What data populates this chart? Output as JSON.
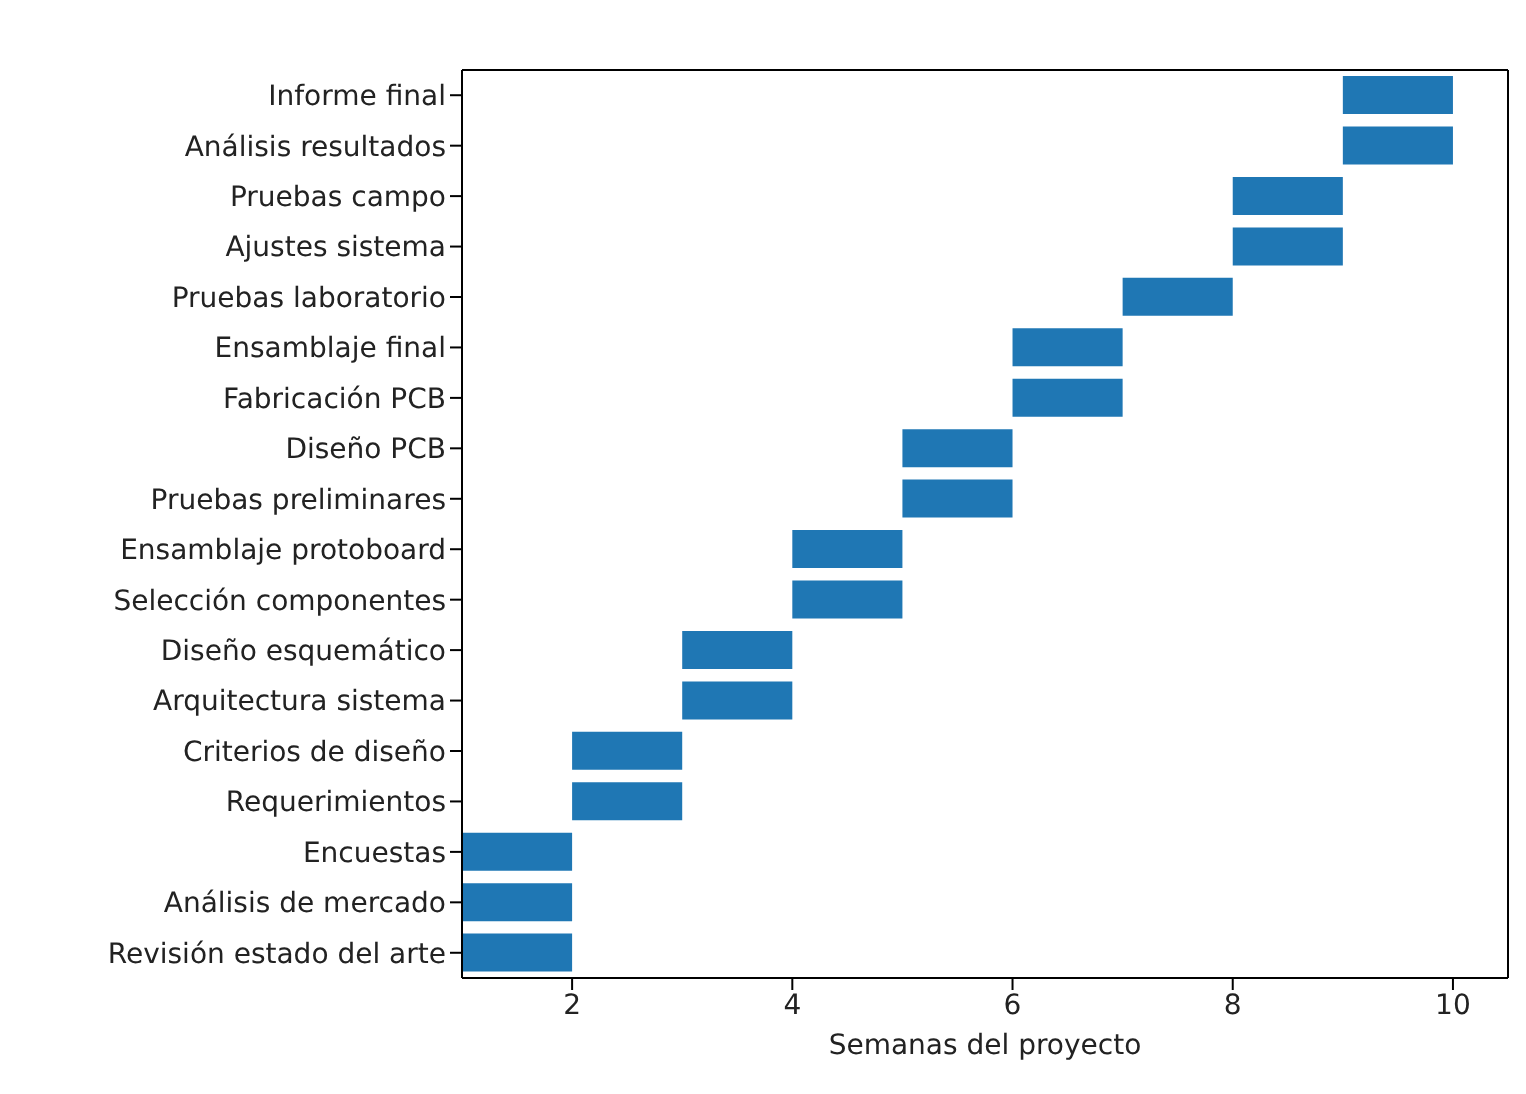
{
  "chart_data": {
    "type": "bar",
    "orientation": "horizontal",
    "xlabel": "Semanas del proyecto",
    "categories": [
      "Informe final",
      "Análisis resultados",
      "Pruebas campo",
      "Ajustes sistema",
      "Pruebas laboratorio",
      "Ensamblaje final",
      "Fabricación PCB",
      "Diseño PCB",
      "Pruebas preliminares",
      "Ensamblaje protoboard",
      "Selección componentes",
      "Diseño esquemático",
      "Arquitectura sistema",
      "Criterios de diseño",
      "Requerimientos",
      "Encuestas",
      "Análisis de mercado",
      "Revisión estado del arte"
    ],
    "base": [
      9,
      9,
      8,
      8,
      7,
      6,
      6,
      5,
      5,
      4,
      4,
      3,
      3,
      2,
      2,
      1,
      1,
      1
    ],
    "values": [
      1,
      1,
      1,
      1,
      1,
      1,
      1,
      1,
      1,
      1,
      1,
      1,
      1,
      1,
      1,
      1,
      1,
      1
    ],
    "color": "#1f77b4",
    "xlim": [
      1,
      10.5
    ],
    "xticks": [
      2,
      4,
      6,
      8,
      10
    ],
    "grid": false
  }
}
